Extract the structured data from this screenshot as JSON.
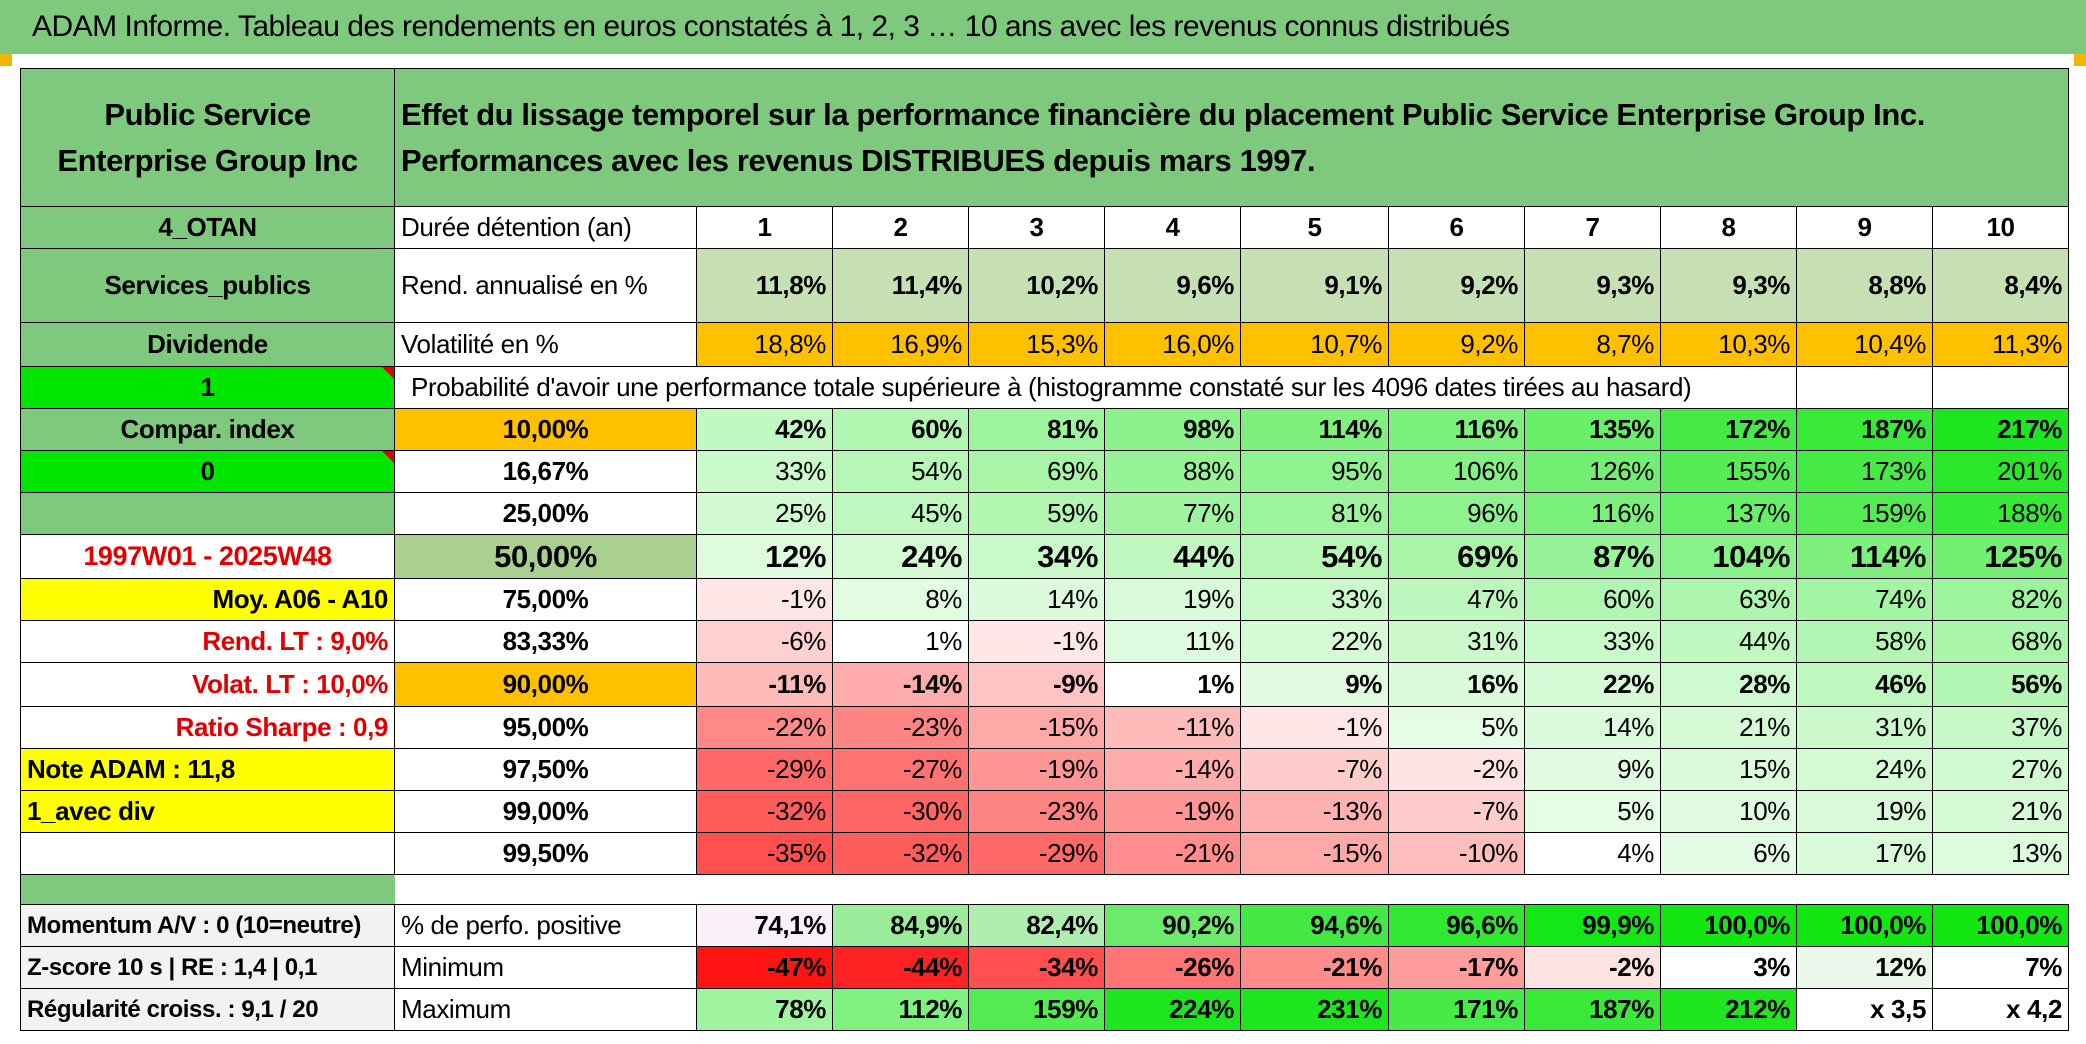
{
  "title": "ADAM Informe. Tableau des rendements en euros constatés à 1, 2, 3 … 10 ans avec les revenus connus distribués",
  "company": "Public Service Enterprise Group Inc",
  "description": "Effet du lissage temporel sur la performance financière du placement Public Service Enterprise Group Inc. Performances avec les revenus DISTRIBUES depuis mars 1997.",
  "left": {
    "otan": "4_OTAN",
    "sector": "Services_publics",
    "dividende": "Dividende",
    "one": "1",
    "compar": "Compar. index",
    "zero": "0",
    "period": "1997W01 - 2025W48",
    "moy": "Moy. A06 - A10",
    "rend_lt": "Rend. LT :   9,0%",
    "volat_lt": "Volat. LT :   10,0%",
    "sharpe": "Ratio Sharpe :   0,9",
    "note": "Note ADAM : 11,8",
    "avec_div": "1_avec div",
    "momentum": "Momentum A/V : 0 (10=neutre)",
    "zscore": "Z-score 10 s | RE : 1,4 | 0,1",
    "regularite": "Régularité croiss. : 9,1 / 20"
  },
  "labels": {
    "duree": "Durée détention (an)",
    "rend": "Rend. annualisé en %",
    "volat": "Volatilité en %",
    "proba": "Probabilité d'avoir une performance totale supérieure à (histogramme constaté sur les 4096 dates tirées au hasard)",
    "positive": "% de perfo. positive",
    "minimum": "Minimum",
    "maximum": "Maximum"
  },
  "years": [
    "1",
    "2",
    "3",
    "4",
    "5",
    "6",
    "7",
    "8",
    "9",
    "10"
  ],
  "rend": [
    "11,8%",
    "11,4%",
    "10,2%",
    "9,6%",
    "9,1%",
    "9,2%",
    "9,3%",
    "9,3%",
    "8,8%",
    "8,4%"
  ],
  "volat": [
    "18,8%",
    "16,9%",
    "15,3%",
    "16,0%",
    "10,7%",
    "9,2%",
    "8,7%",
    "10,3%",
    "10,4%",
    "11,3%"
  ],
  "rows": [
    {
      "p": "10,00%",
      "v": [
        "42%",
        "60%",
        "81%",
        "98%",
        "114%",
        "116%",
        "135%",
        "172%",
        "187%",
        "217%"
      ]
    },
    {
      "p": "16,67%",
      "v": [
        "33%",
        "54%",
        "69%",
        "88%",
        "95%",
        "106%",
        "126%",
        "155%",
        "173%",
        "201%"
      ]
    },
    {
      "p": "25,00%",
      "v": [
        "25%",
        "45%",
        "59%",
        "77%",
        "81%",
        "96%",
        "116%",
        "137%",
        "159%",
        "188%"
      ]
    },
    {
      "p": "50,00%",
      "v": [
        "12%",
        "24%",
        "34%",
        "44%",
        "54%",
        "69%",
        "87%",
        "104%",
        "114%",
        "125%"
      ]
    },
    {
      "p": "75,00%",
      "v": [
        "-1%",
        "8%",
        "14%",
        "19%",
        "33%",
        "47%",
        "60%",
        "63%",
        "74%",
        "82%"
      ]
    },
    {
      "p": "83,33%",
      "v": [
        "-6%",
        "1%",
        "-1%",
        "11%",
        "22%",
        "31%",
        "33%",
        "44%",
        "58%",
        "68%"
      ]
    },
    {
      "p": "90,00%",
      "v": [
        "-11%",
        "-14%",
        "-9%",
        "1%",
        "9%",
        "16%",
        "22%",
        "28%",
        "46%",
        "56%"
      ]
    },
    {
      "p": "95,00%",
      "v": [
        "-22%",
        "-23%",
        "-15%",
        "-11%",
        "-1%",
        "5%",
        "14%",
        "21%",
        "31%",
        "37%"
      ]
    },
    {
      "p": "97,50%",
      "v": [
        "-29%",
        "-27%",
        "-19%",
        "-14%",
        "-7%",
        "-2%",
        "9%",
        "15%",
        "24%",
        "27%"
      ]
    },
    {
      "p": "99,00%",
      "v": [
        "-32%",
        "-30%",
        "-23%",
        "-19%",
        "-13%",
        "-7%",
        "5%",
        "10%",
        "19%",
        "21%"
      ]
    },
    {
      "p": "99,50%",
      "v": [
        "-35%",
        "-32%",
        "-29%",
        "-21%",
        "-15%",
        "-10%",
        "4%",
        "6%",
        "17%",
        "13%"
      ]
    }
  ],
  "positive": [
    "74,1%",
    "84,9%",
    "82,4%",
    "90,2%",
    "94,6%",
    "96,6%",
    "99,9%",
    "100,0%",
    "100,0%",
    "100,0%"
  ],
  "minimum": [
    "-47%",
    "-44%",
    "-34%",
    "-26%",
    "-21%",
    "-17%",
    "-2%",
    "3%",
    "12%",
    "7%"
  ],
  "maximum": [
    "78%",
    "112%",
    "159%",
    "224%",
    "231%",
    "171%",
    "187%",
    "212%",
    "x 3,5",
    "x 4,2"
  ],
  "colors": {
    "green_header": "#7fc97f",
    "lime": "#00e600",
    "yellow": "#ffff00",
    "orange": "#ffc000",
    "red_text": "#e00000"
  }
}
